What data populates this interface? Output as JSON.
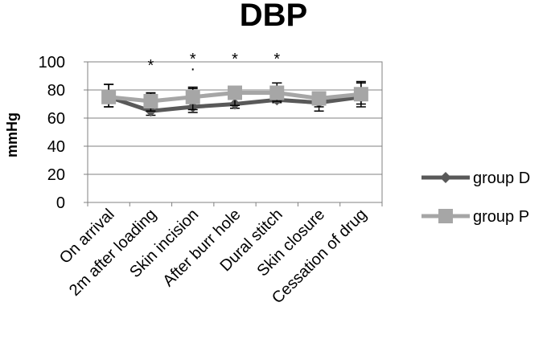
{
  "chart_data": {
    "type": "line",
    "title": "DBP",
    "xlabel": "",
    "ylabel": "mmHg",
    "ylim": [
      0,
      100
    ],
    "yticks": [
      "0",
      "20",
      "40",
      "60",
      "80",
      "100"
    ],
    "categories": [
      "On arrival",
      "2m after loading",
      "Skin incision",
      "After burr hole",
      "Dural stitch",
      "Skin closure",
      "Cessation of drug"
    ],
    "series": [
      {
        "name": "group D",
        "color": "#595959",
        "marker": "diamond",
        "values": [
          75,
          65,
          68,
          70,
          73,
          71,
          75
        ],
        "error_low": [
          68,
          62,
          64,
          67,
          71,
          65,
          68
        ],
        "error_high": [
          84,
          77,
          81,
          77,
          85,
          75,
          85
        ]
      },
      {
        "name": "group P",
        "color": "#a6a6a6",
        "marker": "square",
        "values": [
          75,
          72,
          75,
          78,
          78,
          74,
          77
        ],
        "error_low": [
          68,
          65,
          66,
          69,
          72,
          68,
          70
        ],
        "error_high": [
          84,
          78,
          82,
          82,
          85,
          78,
          86
        ]
      }
    ],
    "annotations": [
      {
        "category": "2m after loading",
        "text": "*"
      },
      {
        "category": "Skin incision",
        "text": "*"
      },
      {
        "category": "Skin incision",
        "text": "·"
      },
      {
        "category": "After burr hole",
        "text": "*"
      },
      {
        "category": "Dural stitch",
        "text": "*"
      }
    ],
    "grid": true,
    "legend_position": "right"
  }
}
